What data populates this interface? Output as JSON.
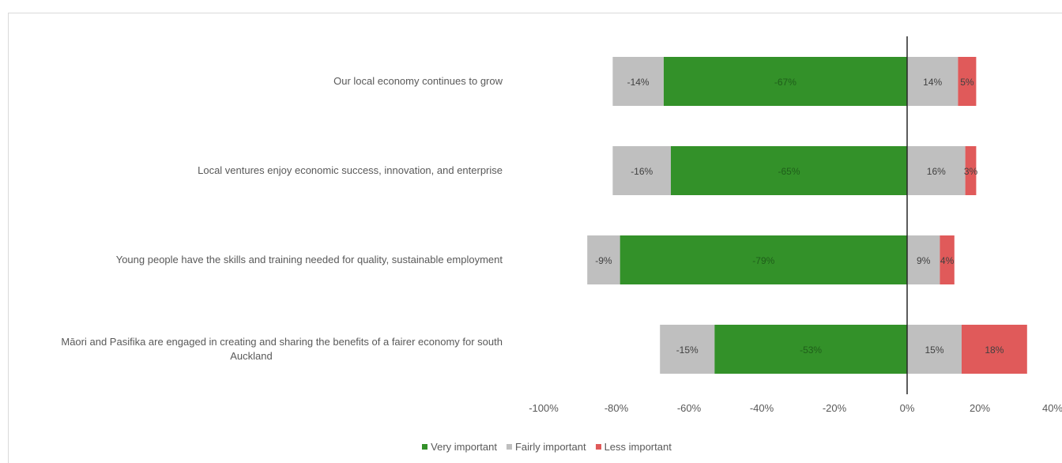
{
  "chart_data": {
    "type": "bar",
    "orientation": "horizontal",
    "stacked": "diverging",
    "categories": [
      [
        "Our local economy continues to grow"
      ],
      [
        "Local ventures enjoy economic success, innovation, and enterprise"
      ],
      [
        "Young people have the skills and training needed for quality, sustainable employment"
      ],
      [
        "Māori and Pasifika are engaged in creating and sharing the benefits of a fairer economy for south",
        "Auckland"
      ]
    ],
    "series": [
      {
        "name": "Very important",
        "color": "#339129",
        "side": "negative",
        "values": [
          -67,
          -65,
          -79,
          -53
        ],
        "labels": [
          "-67%",
          "-65%",
          "-79%",
          "-53%"
        ]
      },
      {
        "name": "Fairly important",
        "color": "#bfbfbf",
        "side": "negative",
        "values": [
          -14,
          -16,
          -9,
          -15
        ],
        "labels": [
          "-14%",
          "-16%",
          "-9%",
          "-15%"
        ]
      },
      {
        "name": "Fairly important",
        "color": "#bfbfbf",
        "side": "positive",
        "values": [
          14,
          16,
          9,
          15
        ],
        "labels": [
          "14%",
          "16%",
          "9%",
          "15%"
        ]
      },
      {
        "name": "Less important",
        "color": "#e05a5a",
        "side": "positive",
        "values": [
          5,
          3,
          4,
          18
        ],
        "labels": [
          "5%",
          "3%",
          "4%",
          "18%"
        ]
      }
    ],
    "xlim": [
      -100,
      40
    ],
    "xticks": [
      "-100%",
      "-80%",
      "-60%",
      "-40%",
      "-20%",
      "0%",
      "20%",
      "40%"
    ],
    "xtick_values": [
      -100,
      -80,
      -60,
      -40,
      -20,
      0,
      20,
      40
    ],
    "grid": false,
    "legend": {
      "position": "bottom",
      "items": [
        {
          "name": "Very important",
          "color": "#339129"
        },
        {
          "name": "Fairly important",
          "color": "#bfbfbf"
        },
        {
          "name": "Less important",
          "color": "#e05a5a"
        }
      ]
    }
  }
}
